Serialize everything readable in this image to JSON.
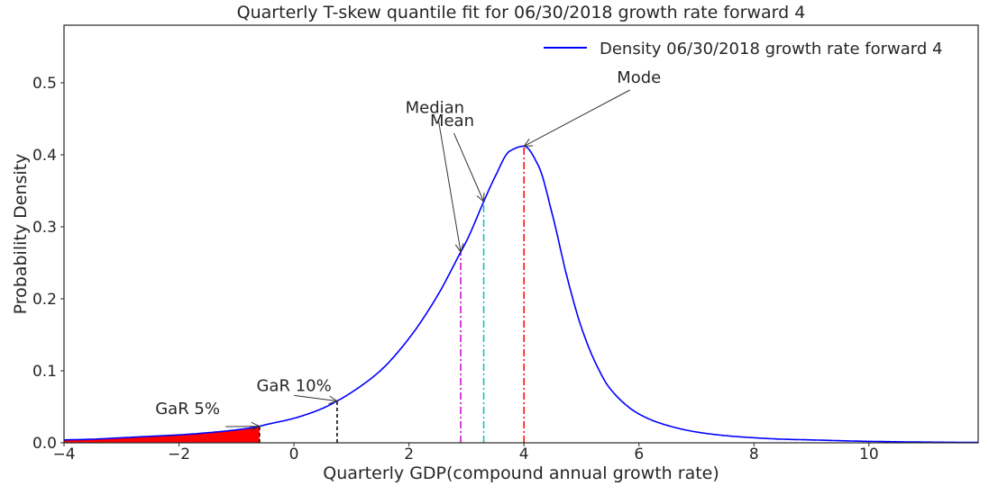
{
  "chart_data": {
    "type": "line",
    "title": "Quarterly T-skew quantile fit for 06/30/2018 growth rate forward 4",
    "xlabel": "Quarterly GDP(compound annual growth rate)",
    "ylabel": "Probability Density",
    "xlim": [
      -4,
      11.9
    ],
    "ylim": [
      0,
      0.58
    ],
    "x_ticks": [
      -4,
      -2,
      0,
      2,
      4,
      6,
      8,
      10
    ],
    "x_tick_labels": [
      "−4",
      "−2",
      "0",
      "2",
      "4",
      "6",
      "8",
      "10"
    ],
    "y_ticks": [
      0.0,
      0.1,
      0.2,
      0.3,
      0.4,
      0.5
    ],
    "y_tick_labels": [
      "0.0",
      "0.1",
      "0.2",
      "0.3",
      "0.4",
      "0.5"
    ],
    "grid": false,
    "legend_position": "top-right",
    "series": [
      {
        "name": "Density 06/30/2018 growth rate forward 4",
        "color": "#0000ff",
        "x": [
          -4,
          -3.5,
          -3,
          -2.5,
          -2,
          -1.5,
          -1,
          -0.6,
          -0.5,
          0,
          0.5,
          0.75,
          1,
          1.5,
          2,
          2.5,
          2.9,
          3,
          3.3,
          3.5,
          3.75,
          4,
          4.25,
          4.5,
          4.75,
          5,
          5.25,
          5.5,
          6,
          6.5,
          7,
          7.5,
          8,
          8.5,
          9,
          10,
          11,
          11.9
        ],
        "y": [
          0.004,
          0.005,
          0.007,
          0.009,
          0.011,
          0.014,
          0.018,
          0.023,
          0.025,
          0.034,
          0.048,
          0.058,
          0.07,
          0.1,
          0.145,
          0.205,
          0.265,
          0.28,
          0.335,
          0.37,
          0.405,
          0.412,
          0.385,
          0.315,
          0.23,
          0.16,
          0.11,
          0.075,
          0.04,
          0.024,
          0.015,
          0.01,
          0.007,
          0.005,
          0.004,
          0.002,
          0.001,
          0.0005
        ]
      }
    ],
    "shaded_region": {
      "x_from": -4,
      "x_to": -0.6,
      "color": "#ff0000"
    },
    "vlines": [
      {
        "x": -0.6,
        "y_top": 0.023,
        "color": "#000000",
        "style": "dashed"
      },
      {
        "x": 0.75,
        "y_top": 0.058,
        "color": "#000000",
        "style": "dashed"
      },
      {
        "x": 2.9,
        "y_top": 0.265,
        "color": "#cc00cc",
        "style": "dashdot"
      },
      {
        "x": 3.3,
        "y_top": 0.335,
        "color": "#00bfbf",
        "style": "dashdot"
      },
      {
        "x": 4.0,
        "y_top": 0.412,
        "color": "#ff0000",
        "style": "dashdot"
      }
    ],
    "annotations": [
      {
        "text": "GaR 5%",
        "tx": -1.85,
        "ty": 0.04,
        "px": -0.6,
        "py": 0.023
      },
      {
        "text": "GaR 10%",
        "tx": 0.0,
        "ty": 0.072,
        "px": 0.75,
        "py": 0.058
      },
      {
        "text": "Median",
        "tx": 2.45,
        "ty": 0.458,
        "px": 2.9,
        "py": 0.265
      },
      {
        "text": "Mean",
        "tx": 2.75,
        "ty": 0.44,
        "px": 3.3,
        "py": 0.335
      },
      {
        "text": "Mode",
        "tx": 6.0,
        "ty": 0.5,
        "px": 4.0,
        "py": 0.412
      }
    ]
  }
}
